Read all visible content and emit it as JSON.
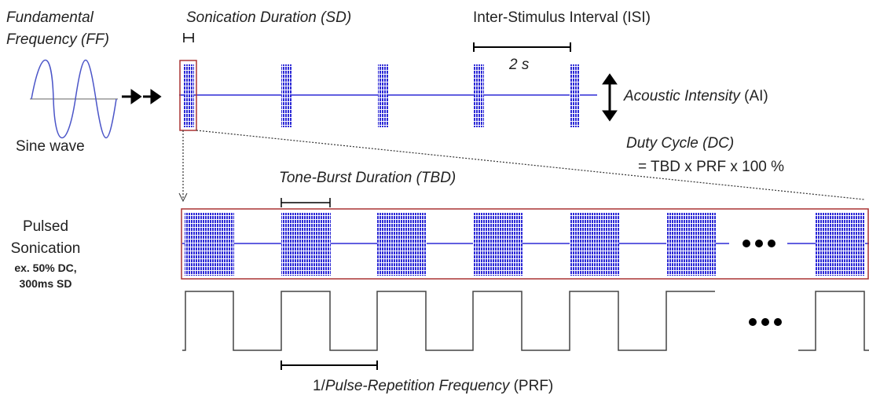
{
  "labels": {
    "ff": [
      "Fundamental",
      "Frequency (FF)"
    ],
    "sine": "Sine wave",
    "sd": "Sonication Duration (SD)",
    "isi": "Inter-Stimulus Interval (ISI)",
    "isi_value": "2 s",
    "ai": [
      "Acoustic Intensity",
      "(AI)"
    ],
    "dc": "Duty Cycle (DC)",
    "dc_formula": "= TBD x PRF x 100 %",
    "tbd": "Tone-Burst Duration (TBD)",
    "pulsed": [
      "Pulsed",
      "Sonication"
    ],
    "example": [
      "ex. 50% DC,",
      "300ms SD"
    ],
    "prf": [
      "1/",
      "Pulse-Repetition Frequency",
      "(PRF)"
    ]
  }
}
